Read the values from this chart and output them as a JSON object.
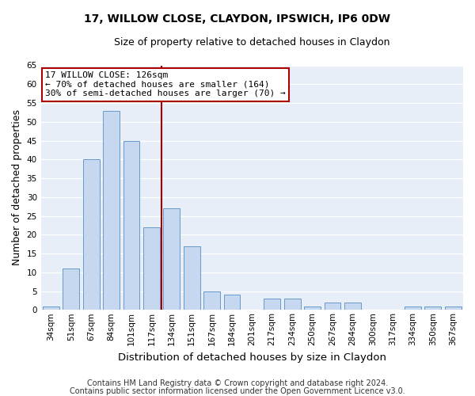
{
  "title_line1": "17, WILLOW CLOSE, CLAYDON, IPSWICH, IP6 0DW",
  "title_line2": "Size of property relative to detached houses in Claydon",
  "xlabel": "Distribution of detached houses by size in Claydon",
  "ylabel": "Number of detached properties",
  "categories": [
    "34sqm",
    "51sqm",
    "67sqm",
    "84sqm",
    "101sqm",
    "117sqm",
    "134sqm",
    "151sqm",
    "167sqm",
    "184sqm",
    "201sqm",
    "217sqm",
    "234sqm",
    "250sqm",
    "267sqm",
    "284sqm",
    "300sqm",
    "317sqm",
    "334sqm",
    "350sqm",
    "367sqm"
  ],
  "values": [
    1,
    11,
    40,
    53,
    45,
    22,
    27,
    17,
    5,
    4,
    0,
    3,
    3,
    1,
    2,
    2,
    0,
    0,
    1,
    1,
    1
  ],
  "bar_color": "#c5d8f0",
  "bar_edge_color": "#6699cc",
  "bar_width": 0.82,
  "vline_x_index": 5.5,
  "vline_color": "#aa0000",
  "annotation_text": "17 WILLOW CLOSE: 126sqm\n← 70% of detached houses are smaller (164)\n30% of semi-detached houses are larger (70) →",
  "annotation_box_color": "#ffffff",
  "annotation_box_edge_color": "#aa0000",
  "ylim": [
    0,
    65
  ],
  "yticks": [
    0,
    5,
    10,
    15,
    20,
    25,
    30,
    35,
    40,
    45,
    50,
    55,
    60,
    65
  ],
  "footnote1": "Contains HM Land Registry data © Crown copyright and database right 2024.",
  "footnote2": "Contains public sector information licensed under the Open Government Licence v3.0.",
  "fig_bg_color": "#ffffff",
  "plot_bg_color": "#e8eef8",
  "grid_color": "#ffffff",
  "title_fontsize": 10,
  "subtitle_fontsize": 9,
  "axis_label_fontsize": 9,
  "tick_fontsize": 7.5,
  "annotation_fontsize": 8,
  "footnote_fontsize": 7
}
